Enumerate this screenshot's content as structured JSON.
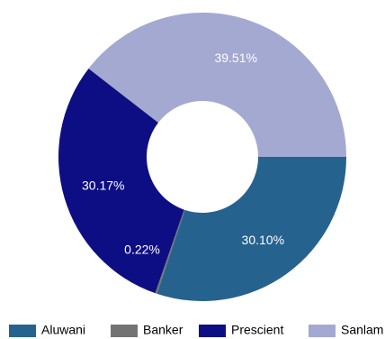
{
  "chart_data": {
    "type": "pie",
    "donut": true,
    "title": "",
    "categories": [
      "Aluwani",
      "Banker",
      "Prescient",
      "Sanlam"
    ],
    "values": [
      30.1,
      0.22,
      30.17,
      39.51
    ],
    "labels": [
      "30.10%",
      "0.22%",
      "30.17%",
      "39.51%"
    ],
    "colors": [
      "#26628e",
      "#737373",
      "#0e0e84",
      "#a3a9d0"
    ],
    "legend": {
      "position": "bottom",
      "entries": [
        "Aluwani",
        "Banker",
        "Prescient",
        "Sanlam"
      ]
    },
    "start_angle_deg": 0,
    "direction": "clockwise"
  }
}
